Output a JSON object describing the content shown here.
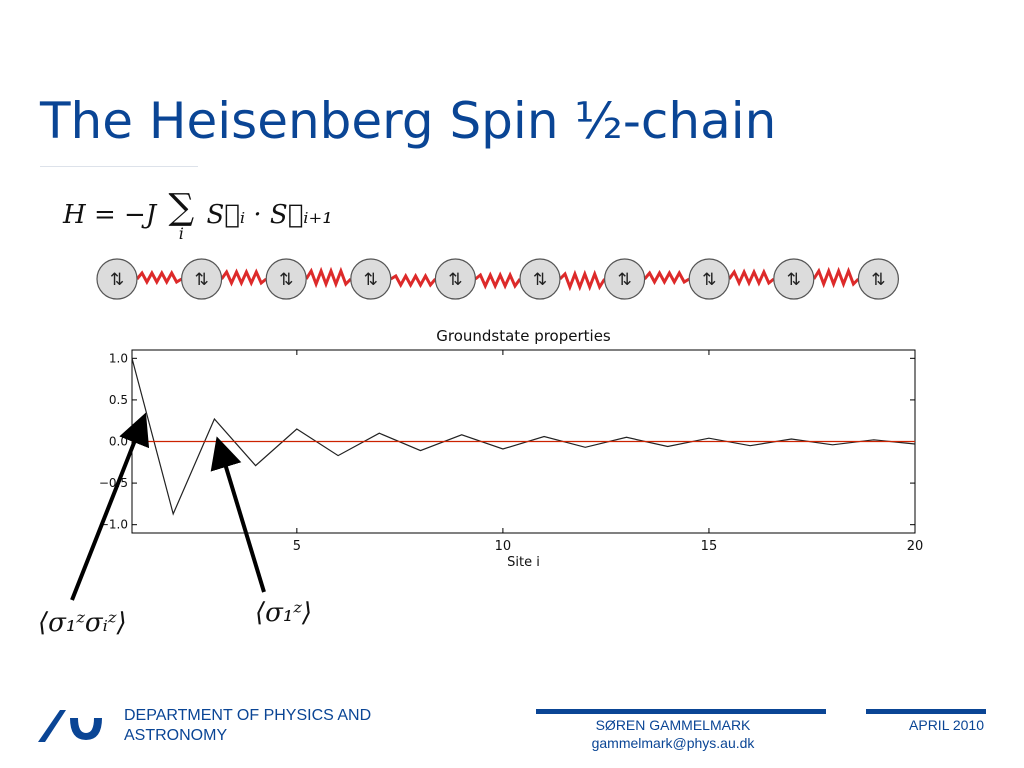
{
  "slide": {
    "title": "The Heisenberg Spin ½-chain",
    "equation": {
      "lhs": "H = −J",
      "sum_symbol": "∑",
      "sum_index": "i",
      "term": "S⃗ᵢ · S⃗ᵢ₊₁"
    },
    "chain": {
      "site_count": 10,
      "spin_glyph": "⇅",
      "bond_color": "#dd2a2a"
    },
    "annotations": {
      "correlation": "⟨σ₁ᶻσᵢᶻ⟩",
      "magnetization": "⟨σ₁ᶻ⟩"
    }
  },
  "footer": {
    "department": "DEPARTMENT OF PHYSICS AND ASTRONOMY",
    "author": "SØREN GAMMELMARK",
    "email": "gammelmark@phys.au.dk",
    "date": "APRIL 2010",
    "brand_color": "#0a4595"
  },
  "chart_data": {
    "type": "line",
    "title": "Groundstate properties",
    "xlabel": "Site i",
    "ylabel": "",
    "xlim": [
      1,
      20
    ],
    "ylim": [
      -1.1,
      1.1
    ],
    "xticks": [
      5,
      10,
      15,
      20
    ],
    "yticks": [
      1.0,
      0.5,
      0.0,
      -0.5,
      -1.0
    ],
    "ytick_labels": [
      "1.0",
      "0.5",
      "0.0",
      "−0.5",
      "−1.0"
    ],
    "grid": false,
    "series": [
      {
        "color": "#222222",
        "x": [
          1,
          2,
          3,
          4,
          5,
          6,
          7,
          8,
          9,
          10,
          11,
          12,
          13,
          14,
          15,
          16,
          17,
          18,
          19,
          20
        ],
        "y": [
          1.0,
          -0.87,
          0.27,
          -0.29,
          0.15,
          -0.17,
          0.1,
          -0.11,
          0.08,
          -0.09,
          0.06,
          -0.07,
          0.05,
          -0.06,
          0.04,
          -0.05,
          0.03,
          -0.04,
          0.02,
          -0.03
        ]
      },
      {
        "color": "#cc2200",
        "x": [
          1,
          20
        ],
        "y": [
          0.0,
          0.0
        ]
      }
    ]
  }
}
